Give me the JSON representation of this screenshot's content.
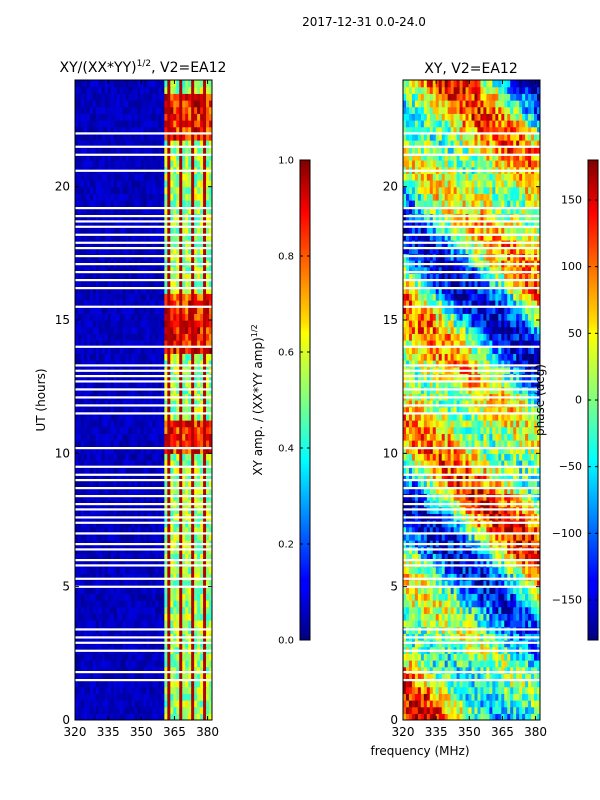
{
  "suptitle": "2017-12-31 0.0-24.0",
  "common_xlabel": "frequency (MHz)",
  "chart_data": [
    {
      "type": "heatmap",
      "panel": "left",
      "title_main": "XY/(XX*YY)",
      "title_sup": "1/2",
      "title_tail": ", V2=EA12",
      "xlabel": "",
      "ylabel": "UT (hours)",
      "xlim": [
        320,
        382
      ],
      "ylim": [
        0,
        24
      ],
      "xticks": [
        320,
        335,
        350,
        365,
        380
      ],
      "yticks": [
        0,
        5,
        10,
        15,
        20
      ],
      "colormap": "jet",
      "colorbar": {
        "label_main": "XY amp. / (XX*YY amp)",
        "label_sup": "1/2",
        "range": [
          0.0,
          1.0
        ],
        "ticks": [
          "0.0",
          "0.2",
          "0.4",
          "0.6",
          "0.8",
          "1.0"
        ],
        "tick_values": [
          0.0,
          0.2,
          0.4,
          0.6,
          0.8,
          1.0
        ]
      },
      "active_band_mhz": [
        360,
        381
      ],
      "hot_periods_ut": [
        [
          10.0,
          11.2
        ],
        [
          13.8,
          16.0
        ],
        [
          21.8,
          23.5
        ]
      ],
      "gap_rows_ut": [
        1.5,
        1.8,
        2.6,
        2.9,
        3.1,
        3.4,
        5.0,
        5.3,
        5.8,
        6.0,
        6.4,
        6.6,
        7.0,
        7.4,
        7.6,
        7.9,
        8.1,
        8.4,
        8.7,
        9.0,
        9.2,
        9.5,
        10.2,
        11.5,
        11.8,
        12.1,
        12.4,
        12.7,
        12.9,
        13.1,
        13.3,
        14.0,
        15.5,
        16.2,
        16.5,
        16.8,
        17.1,
        17.4,
        17.7,
        17.9,
        18.2,
        18.5,
        18.7,
        18.9,
        19.2,
        20.6,
        21.2,
        21.5,
        22.0
      ]
    },
    {
      "type": "heatmap",
      "panel": "right",
      "title": "XY, V2=EA12",
      "xlabel": "",
      "ylabel": "",
      "xlim": [
        320,
        382
      ],
      "ylim": [
        0,
        24
      ],
      "xticks": [
        320,
        335,
        350,
        365,
        380
      ],
      "yticks": [
        0,
        5,
        10,
        15,
        20
      ],
      "colormap": "jet",
      "colorbar": {
        "label": "phase (deg)",
        "range": [
          -180,
          180
        ],
        "ticks": [
          "150",
          "100",
          "50",
          "0",
          "−50",
          "−100",
          "−150"
        ],
        "tick_values": [
          150,
          100,
          50,
          0,
          -50,
          -100,
          -150
        ]
      },
      "gap_rows_ut": [
        1.5,
        1.8,
        2.6,
        2.9,
        3.1,
        3.4,
        5.0,
        5.3,
        5.8,
        6.0,
        6.4,
        6.6,
        7.0,
        7.4,
        7.6,
        7.9,
        8.1,
        8.4,
        8.7,
        9.0,
        9.2,
        9.5,
        10.2,
        11.5,
        11.8,
        12.1,
        12.4,
        12.7,
        12.9,
        13.1,
        13.3,
        14.0,
        15.5,
        16.2,
        16.5,
        16.8,
        17.1,
        17.4,
        17.7,
        17.9,
        18.2,
        18.5,
        18.7,
        18.9,
        19.2,
        20.6,
        21.2,
        21.5,
        22.0
      ]
    }
  ]
}
